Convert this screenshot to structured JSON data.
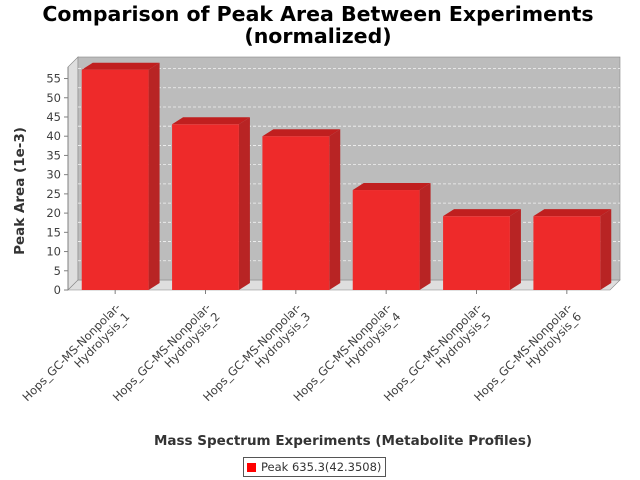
{
  "colors": {
    "bar_front": "#ee2a2a",
    "bar_top": "#c01f1f",
    "bar_side": "#b82424",
    "plot_back": "#bcbcbc",
    "plot_wall": "#dedede",
    "legend_swatch": "#ff0000"
  },
  "chart_data": {
    "type": "bar",
    "title": "Comparison of Peak Area Between Experiments",
    "title_line2": "(normalized)",
    "xlabel": "Mass Spectrum Experiments (Metabolite Profiles)",
    "ylabel": "Peak Area (1e-3)",
    "ylim": [
      0,
      58
    ],
    "yticks": [
      0,
      5,
      10,
      15,
      20,
      25,
      30,
      35,
      40,
      45,
      50,
      55
    ],
    "grid": true,
    "legend_position": "bottom",
    "categories": [
      "Hops_GC-MS-Nonpolar-Hydrolysis_1",
      "Hops_GC-MS-Nonpolar-Hydrolysis_2",
      "Hops_GC-MS-Nonpolar-Hydrolysis_3",
      "Hops_GC-MS-Nonpolar-Hydrolysis_4",
      "Hops_GC-MS-Nonpolar-Hydrolysis_5",
      "Hops_GC-MS-Nonpolar-Hydrolysis_6"
    ],
    "category_lines": [
      [
        "Hops_GC-MS-Nonpolar-",
        "Hydrolysis_1"
      ],
      [
        "Hops_GC-MS-Nonpolar-",
        "Hydrolysis_2"
      ],
      [
        "Hops_GC-MS-Nonpolar-",
        "Hydrolysis_3"
      ],
      [
        "Hops_GC-MS-Nonpolar-",
        "Hydrolysis_4"
      ],
      [
        "Hops_GC-MS-Nonpolar-",
        "Hydrolysis_5"
      ],
      [
        "Hops_GC-MS-Nonpolar-",
        "Hydrolysis_6"
      ]
    ],
    "series": [
      {
        "name": "Peak 635.3(42.3508)",
        "values": [
          57.3,
          43.1,
          40.0,
          26.0,
          19.2,
          19.2
        ]
      }
    ]
  }
}
